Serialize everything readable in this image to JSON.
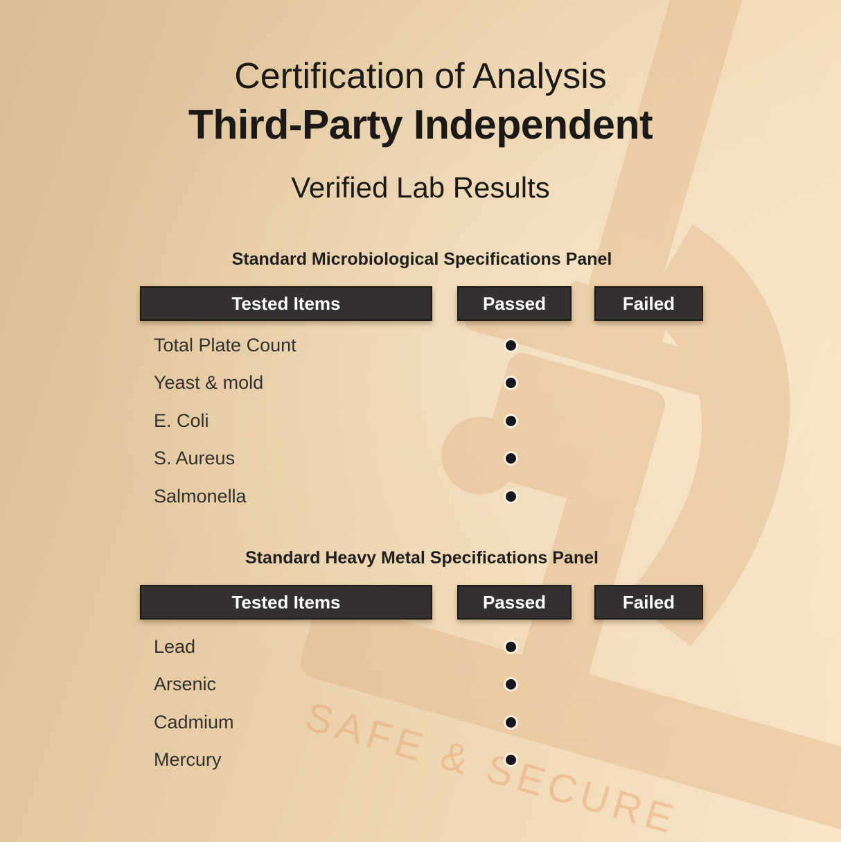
{
  "header": {
    "line1": "Certification of Analysis",
    "line2": "Third-Party Independent",
    "line3": "Verified Lab Results"
  },
  "watermark": {
    "stamp_text": "SAFE & SECURE",
    "icon": "microscope-icon"
  },
  "colors": {
    "background_dark": "#d9bd94",
    "background_light": "#f9e6c8",
    "header_box": "#343130",
    "header_box_border": "#1b1918",
    "header_text": "#ffffff",
    "title_text": "#1b1a18",
    "row_text": "#32302d",
    "dot": "#16161e",
    "watermark_shape": "#dfb185",
    "stamp_text_color": "#e9a678"
  },
  "tables": [
    {
      "title": "Standard Microbiological Specifications Panel",
      "columns": [
        "Tested Items",
        "Passed",
        "Failed"
      ],
      "rows": [
        {
          "item": "Total Plate Count",
          "passed": true,
          "failed": false
        },
        {
          "item": "Yeast & mold",
          "passed": true,
          "failed": false
        },
        {
          "item": "E. Coli",
          "passed": true,
          "failed": false
        },
        {
          "item": "S. Aureus",
          "passed": true,
          "failed": false
        },
        {
          "item": "Salmonella",
          "passed": true,
          "failed": false
        }
      ]
    },
    {
      "title": "Standard Heavy Metal Specifications Panel",
      "columns": [
        "Tested Items",
        "Passed",
        "Failed"
      ],
      "rows": [
        {
          "item": "Lead",
          "passed": true,
          "failed": false
        },
        {
          "item": "Arsenic",
          "passed": true,
          "failed": false
        },
        {
          "item": "Cadmium",
          "passed": true,
          "failed": false
        },
        {
          "item": "Mercury",
          "passed": true,
          "failed": false
        }
      ]
    }
  ]
}
